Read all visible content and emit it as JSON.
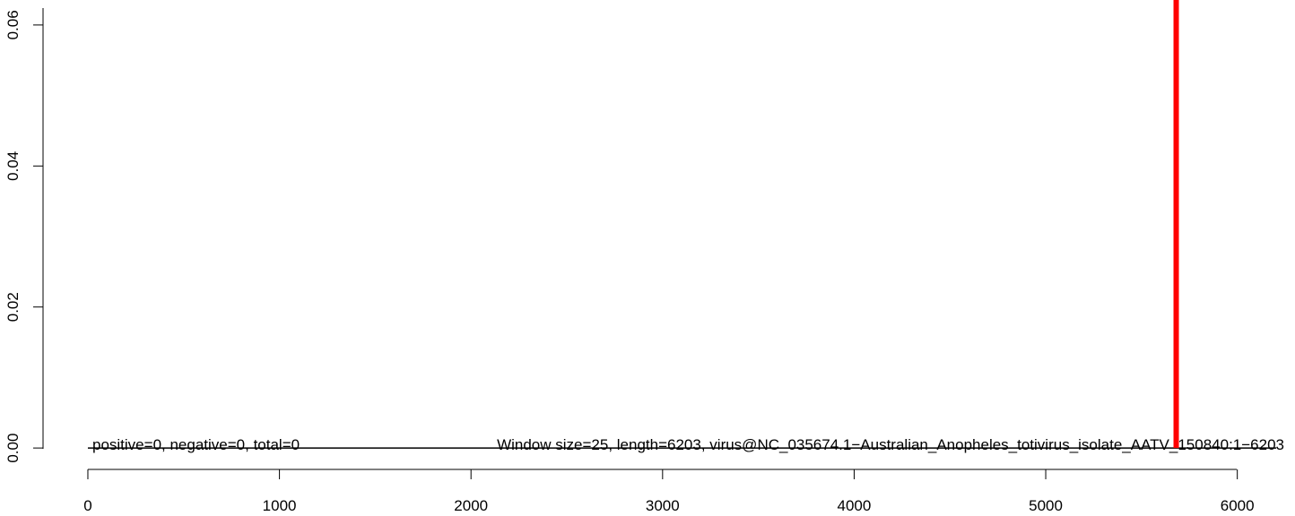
{
  "chart_data": {
    "type": "line",
    "annotations": [
      "positive=0, negative=0, total=0",
      "Window size=25, length=6203, virus@NC_035674.1−Australian_Anopheles_totivirus_isolate_AATV_150840:1−6203"
    ],
    "x": [
      0,
      6203
    ],
    "series": [
      {
        "color": "#000000",
        "values": [
          0,
          0
        ]
      }
    ],
    "vline": {
      "x": 5681,
      "color": "#ff0000"
    },
    "xlim": [
      -248,
      6451
    ],
    "ylim": [
      -0.0024,
      0.0624
    ],
    "xticks": [
      0,
      1000,
      2000,
      3000,
      4000,
      5000,
      6000
    ],
    "yticks": [
      {
        "value": 0,
        "label": "0.00"
      },
      {
        "value": 0.02,
        "label": "0.02"
      },
      {
        "value": 0.04,
        "label": "0.04"
      },
      {
        "value": 0.06,
        "label": "0.06"
      }
    ]
  }
}
